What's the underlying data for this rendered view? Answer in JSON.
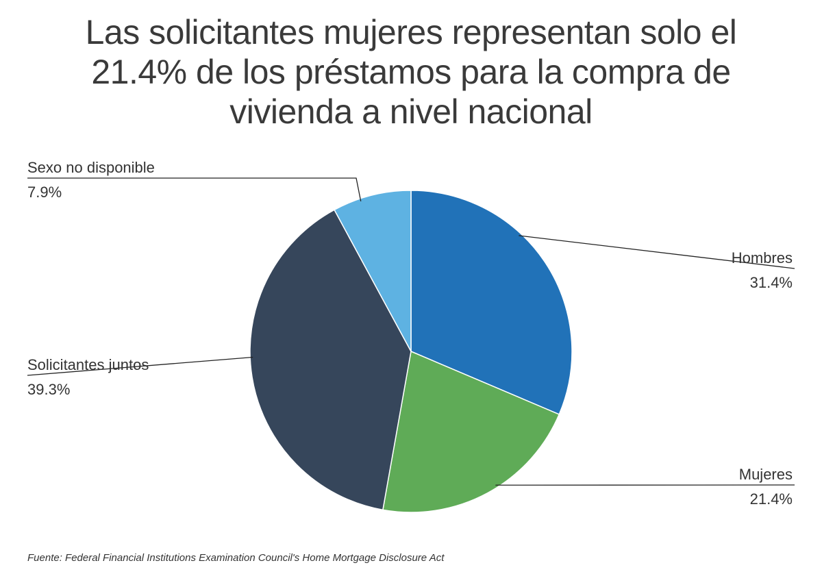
{
  "title_lines": [
    "Las solicitantes mujeres representan solo el",
    "21.4% de los préstamos para la compra de",
    "vivienda a nivel nacional"
  ],
  "footnote": "Fuente: Federal Financial Institutions Examination Council's Home Mortgage Disclosure Act",
  "chart_data": {
    "type": "pie",
    "title": "Las solicitantes mujeres representan solo el 21.4% de los préstamos para la compra de vivienda a nivel nacional",
    "start_angle_deg": 0,
    "direction": "clockwise",
    "slices": [
      {
        "label": "Hombres",
        "value": 31.4,
        "value_label": "31.4%",
        "color": "#2172b8"
      },
      {
        "label": "Mujeres",
        "value": 21.4,
        "value_label": "21.4%",
        "color": "#5fab57"
      },
      {
        "label": "Solicitantes juntos",
        "value": 39.3,
        "value_label": "39.3%",
        "color": "#36465b"
      },
      {
        "label": "Sexo no disponible",
        "value": 7.9,
        "value_label": "7.9%",
        "color": "#5eb2e2"
      }
    ]
  }
}
